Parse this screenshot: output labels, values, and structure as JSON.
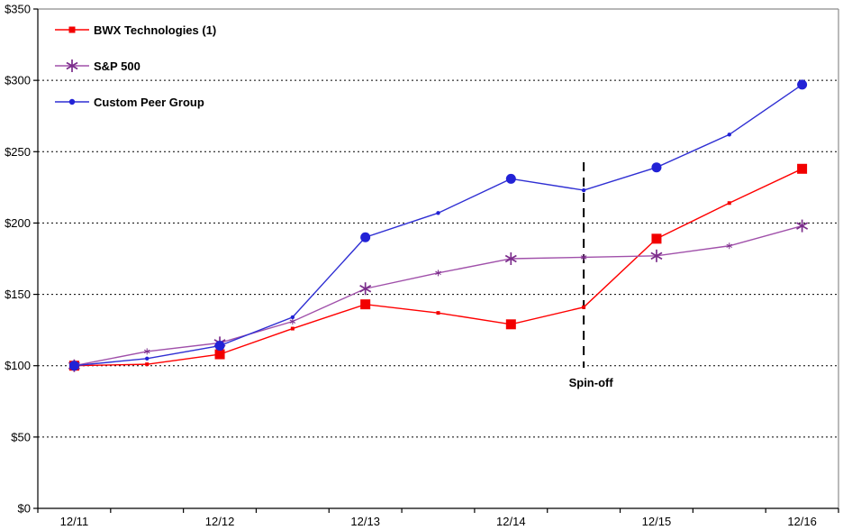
{
  "chart_data": {
    "type": "line",
    "title": "",
    "background": "#ffffff",
    "grid": {
      "color": "#000000",
      "style": "dotted"
    },
    "border_color": "#8c8c8c",
    "axis_color": "#000000",
    "y_axis": {
      "min": 0,
      "max": 350,
      "step": 50,
      "tick_labels": [
        "$0",
        "$50",
        "$100",
        "$150",
        "$200",
        "$250",
        "$300",
        "$350"
      ]
    },
    "x_axis": {
      "tick_labels": [
        "12/11",
        "12/12",
        "12/13",
        "12/14",
        "12/15",
        "12/16"
      ]
    },
    "x_points": [
      "12/11",
      "6/12",
      "12/12",
      "6/13",
      "12/13",
      "6/14",
      "12/14",
      "6/15",
      "12/15",
      "6/16",
      "12/16"
    ],
    "major_indices": [
      0,
      2,
      4,
      6,
      8,
      10
    ],
    "series": [
      {
        "name": "BWX Technologies (1)",
        "marker": "square",
        "color": "#ff0000",
        "marker_color": "#f20000",
        "values": [
          100,
          101,
          108,
          126,
          143,
          137,
          129,
          141,
          189,
          214,
          238
        ]
      },
      {
        "name": "S&P 500",
        "marker": "asterisk",
        "color": "#a050aa",
        "marker_color": "#7b2d8b",
        "values": [
          100,
          110,
          116,
          131,
          154,
          165,
          175,
          176,
          177,
          184,
          198
        ]
      },
      {
        "name": "Custom Peer Group",
        "marker": "circle",
        "color": "#2f2fd3",
        "marker_color": "#2222d6",
        "values": [
          100,
          105,
          114,
          134,
          190,
          207,
          231,
          223,
          239,
          262,
          297
        ]
      }
    ],
    "annotation": {
      "label": "Spin-off",
      "x_index": 7
    },
    "legend_position": "top-left"
  }
}
